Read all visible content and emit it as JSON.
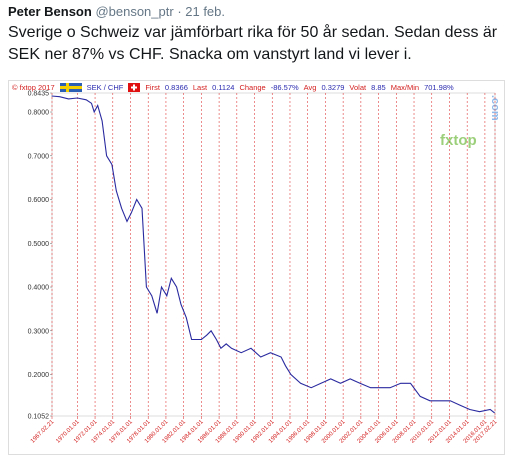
{
  "tweet": {
    "name": "Peter Benson",
    "handle": "@benson_ptr",
    "date": "· 21 feb.",
    "text": "Sverige o Schweiz var jämförbart rika för 50 år sedan. Sedan dess är SEK ner 87% vs CHF. Snacka om vanstyrt land vi lever i."
  },
  "chart_data": {
    "type": "line",
    "source": "© fxtop 2017",
    "pair": "SEK / CHF",
    "logo": "fxtop",
    "logo_suffix": ".com",
    "stats": [
      {
        "label": "First",
        "value": "0.8366"
      },
      {
        "label": "Last",
        "value": "0.1124"
      },
      {
        "label": "Change",
        "value": "-86.57%"
      },
      {
        "label": "Avg",
        "value": "0.3279"
      },
      {
        "label": "Volat",
        "value": "8.85"
      },
      {
        "label": "Max/Min",
        "value": "701.98%"
      }
    ],
    "x": [
      1967.1,
      1968,
      1969,
      1970,
      1971,
      1971.6,
      1971.9,
      1972.3,
      1972.8,
      1973.3,
      1973.9,
      1974.4,
      1975,
      1975.6,
      1976.1,
      1976.7,
      1977.3,
      1977.8,
      1978.4,
      1979,
      1979.5,
      1980.1,
      1980.6,
      1981.2,
      1981.7,
      1982.3,
      1982.9,
      1983.4,
      1984,
      1984.6,
      1985.1,
      1985.7,
      1986.2,
      1986.8,
      1987.4,
      1988.5,
      1989.6,
      1990.7,
      1991.8,
      1993,
      1993.5,
      1994.1,
      1995.2,
      1996.4,
      1997.5,
      1998.6,
      1999.7,
      2000.8,
      2001.9,
      2003.1,
      2004.2,
      2005.3,
      2006.5,
      2007.6,
      2008.7,
      2009.8,
      2011,
      2012.1,
      2013.2,
      2014.3,
      2015.4,
      2016.6,
      2017.1
    ],
    "series": [
      {
        "color": "#2a2aa0",
        "values": [
          0.8366,
          0.835,
          0.83,
          0.832,
          0.828,
          0.82,
          0.8,
          0.815,
          0.78,
          0.7,
          0.68,
          0.62,
          0.58,
          0.55,
          0.57,
          0.6,
          0.58,
          0.4,
          0.38,
          0.34,
          0.4,
          0.38,
          0.42,
          0.4,
          0.36,
          0.33,
          0.28,
          0.28,
          0.28,
          0.29,
          0.3,
          0.28,
          0.26,
          0.27,
          0.26,
          0.25,
          0.26,
          0.24,
          0.25,
          0.24,
          0.22,
          0.2,
          0.18,
          0.17,
          0.18,
          0.19,
          0.18,
          0.19,
          0.18,
          0.17,
          0.17,
          0.17,
          0.18,
          0.18,
          0.15,
          0.14,
          0.14,
          0.14,
          0.13,
          0.12,
          0.115,
          0.12,
          0.1124
        ]
      }
    ],
    "xlim": [
      1967.14,
      2017.14
    ],
    "ylim": [
      0.1052,
      0.8435
    ],
    "yticks": [
      0.1052,
      {
        "value": 0.2,
        "label": "0.2000"
      },
      {
        "value": 0.3,
        "label": "0.3000"
      },
      {
        "value": 0.4,
        "label": "0.4000"
      },
      {
        "value": 0.5,
        "label": "0.5000"
      },
      {
        "value": 0.6,
        "label": "0.6000"
      },
      {
        "value": 0.7,
        "label": "0.7000"
      },
      {
        "value": 0.8,
        "label": "0.8000"
      },
      0.8435
    ],
    "xticks": [
      {
        "value": 1967.14,
        "label": "1967.02.21"
      },
      {
        "value": 1970,
        "label": "1970.01.01"
      },
      {
        "value": 1972,
        "label": "1972.01.01"
      },
      {
        "value": 1974,
        "label": "1974.01.01"
      },
      {
        "value": 1976,
        "label": "1976.01.01"
      },
      {
        "value": 1978,
        "label": "1978.01.01"
      },
      {
        "value": 1980,
        "label": "1980.01.01"
      },
      {
        "value": 1982,
        "label": "1982.01.01"
      },
      {
        "value": 1984,
        "label": "1984.01.01"
      },
      {
        "value": 1986,
        "label": "1986.01.01"
      },
      {
        "value": 1988,
        "label": "1988.01.01"
      },
      {
        "value": 1990,
        "label": "1990.01.01"
      },
      {
        "value": 1992,
        "label": "1992.01.01"
      },
      {
        "value": 1994,
        "label": "1994.01.01"
      },
      {
        "value": 1996,
        "label": "1996.01.01"
      },
      {
        "value": 1998,
        "label": "1998.01.01"
      },
      {
        "value": 2000,
        "label": "2000.01.01"
      },
      {
        "value": 2002,
        "label": "2002.01.01"
      },
      {
        "value": 2004,
        "label": "2004.01.01"
      },
      {
        "value": 2006,
        "label": "2006.01.01"
      },
      {
        "value": 2008,
        "label": "2008.01.01"
      },
      {
        "value": 2010,
        "label": "2010.01.01"
      },
      {
        "value": 2012,
        "label": "2012.01.01"
      },
      {
        "value": 2014,
        "label": "2014.01.01"
      },
      {
        "value": 2016,
        "label": "2016.01.01"
      },
      {
        "value": 2017.14,
        "label": "2017.02.21"
      }
    ],
    "grid": true
  }
}
